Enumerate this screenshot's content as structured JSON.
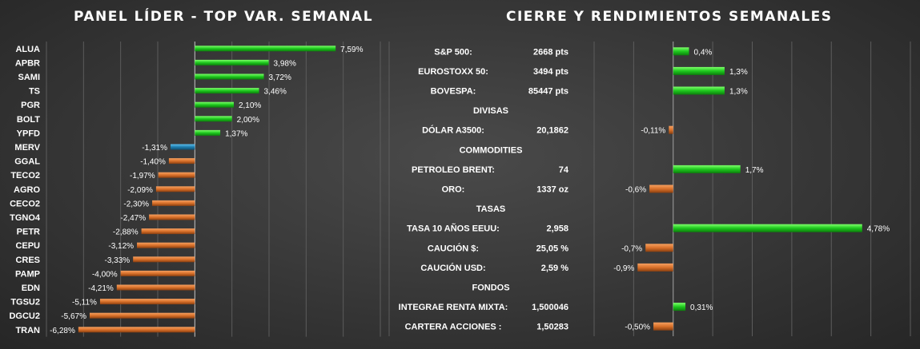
{
  "left_panel": {
    "title": "PANEL LÍDER - TOP VAR. SEMANAL"
  },
  "right_panel": {
    "title": "CIERRE Y RENDIMIENTOS  SEMANALES"
  },
  "colors": {
    "positive": "#1ec81e",
    "negative": "#d9712a",
    "index": "#1f7fb0",
    "grid": "#5c5c5c"
  },
  "chart_data": [
    {
      "type": "bar",
      "orientation": "horizontal",
      "title": "PANEL LÍDER - TOP VAR. SEMANAL",
      "categories": [
        "ALUA",
        "APBR",
        "SAMI",
        "TS",
        "PGR",
        "BOLT",
        "YPFD",
        "MERV",
        "GGAL",
        "TECO2",
        "AGRO",
        "CECO2",
        "TGNO4",
        "PETR",
        "CEPU",
        "CRES",
        "PAMP",
        "EDN",
        "TGSU2",
        "DGCU2",
        "TRAN"
      ],
      "values": [
        7.59,
        3.98,
        3.72,
        3.46,
        2.1,
        2.0,
        1.37,
        -1.31,
        -1.4,
        -1.97,
        -2.09,
        -2.3,
        -2.47,
        -2.88,
        -3.12,
        -3.33,
        -4.0,
        -4.21,
        -5.11,
        -5.67,
        -6.28
      ],
      "value_labels": [
        "7,59%",
        "3,98%",
        "3,72%",
        "3,46%",
        "2,10%",
        "2,00%",
        "1,37%",
        "-1,31%",
        "-1,40%",
        "-1,97%",
        "-2,09%",
        "-2,30%",
        "-2,47%",
        "-2,88%",
        "-3,12%",
        "-3,33%",
        "-4,00%",
        "-4,21%",
        "-5,11%",
        "-5,67%",
        "-6,28%"
      ],
      "highlight_category": "MERV",
      "xlim": [
        -8,
        10
      ],
      "grid": true
    },
    {
      "type": "table",
      "title": "CIERRE Y RENDIMIENTOS  SEMANALES",
      "rows": [
        {
          "kind": "item",
          "label": "S&P 500:",
          "close": "2668 pts",
          "value": 0.4,
          "value_label": "0,4%"
        },
        {
          "kind": "item",
          "label": "EUROSTOXX 50:",
          "close": "3494 pts",
          "value": 1.3,
          "value_label": "1,3%"
        },
        {
          "kind": "item",
          "label": "BOVESPA:",
          "close": "85447 pts",
          "value": 1.3,
          "value_label": "1,3%"
        },
        {
          "kind": "header",
          "label": "DIVISAS"
        },
        {
          "kind": "item",
          "label": "DÓLAR A3500:",
          "close": "20,1862",
          "value": -0.11,
          "value_label": "-0,11%"
        },
        {
          "kind": "header",
          "label": "COMMODITIES"
        },
        {
          "kind": "item",
          "label": "PETROLEO BRENT:",
          "close": "74",
          "value": 1.7,
          "value_label": "1,7%"
        },
        {
          "kind": "item",
          "label": "ORO:",
          "close": "1337 oz",
          "value": -0.6,
          "value_label": "-0,6%"
        },
        {
          "kind": "header",
          "label": "TASAS"
        },
        {
          "kind": "item",
          "label": "TASA 10 AÑOS EEUU:",
          "close": "2,958",
          "value": 4.78,
          "value_label": "4,78%"
        },
        {
          "kind": "item",
          "label": "CAUCIÓN $:",
          "close": "25,05 %",
          "value": -0.7,
          "value_label": "-0,7%"
        },
        {
          "kind": "item",
          "label": "CAUCIÓN USD:",
          "close": "2,59 %",
          "value": -0.9,
          "value_label": "-0,9%"
        },
        {
          "kind": "header",
          "label": "FONDOS"
        },
        {
          "kind": "item",
          "label": "INTEGRAE RENTA MIXTA:",
          "close": "1,500046",
          "value": 0.31,
          "value_label": "0,31%"
        },
        {
          "kind": "item",
          "label": "CARTERA ACCIONES :",
          "close": "1,50283",
          "value": -0.5,
          "value_label": "-0,50%"
        }
      ],
      "bar_xlim": [
        -2,
        6
      ],
      "grid": true
    }
  ]
}
